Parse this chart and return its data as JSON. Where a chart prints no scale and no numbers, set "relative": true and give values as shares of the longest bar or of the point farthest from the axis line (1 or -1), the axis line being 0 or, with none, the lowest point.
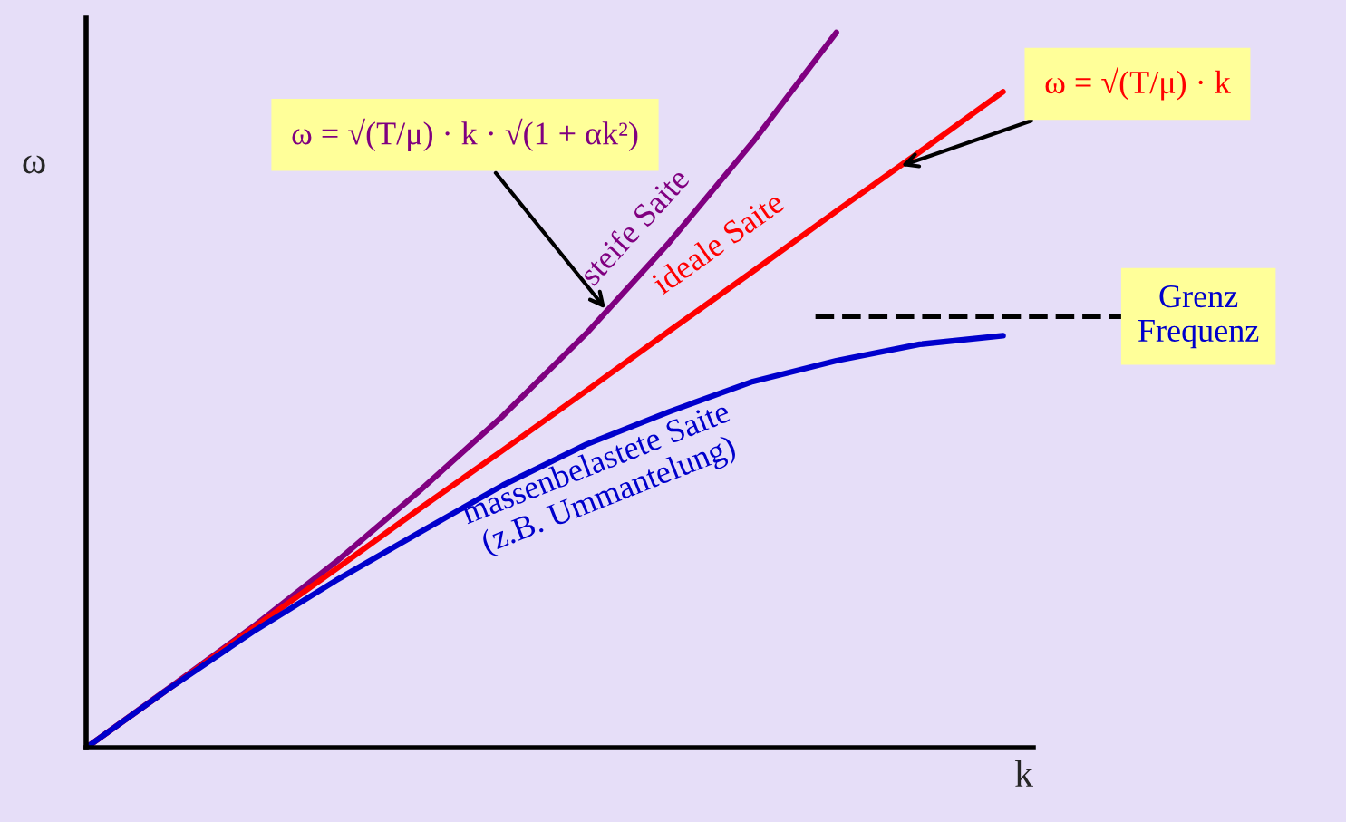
{
  "chart_data": {
    "type": "line",
    "relative": true,
    "xlabel": "k",
    "ylabel": "ω",
    "categories": [
      null,
      null,
      null,
      null,
      null,
      null,
      null,
      null,
      null,
      null,
      null,
      null
    ],
    "series": [
      {
        "name": "steife Saite",
        "color": "#800080",
        "values": [
          0,
          0.084,
          0.169,
          0.26,
          0.359,
          0.464,
          0.579,
          0.707,
          0.847,
          1,
          null,
          null
        ]
      },
      {
        "name": "ideale Saite",
        "color": "#ff0000",
        "values": [
          0,
          0.083,
          0.167,
          0.25,
          0.334,
          0.416,
          0.499,
          0.583,
          0.666,
          0.75,
          0.833,
          0.917
        ]
      },
      {
        "name": "massenbelastete Saite\n(z.B. Ummantelung)",
        "color": "#0000cc",
        "values": [
          0,
          0.083,
          0.162,
          0.234,
          0.301,
          0.367,
          0.424,
          0.47,
          0.512,
          0.541,
          0.564,
          0.576
        ]
      }
    ],
    "ref_lines": [
      {
        "axis": "y",
        "value": 0.603,
        "label": "Grenz\nFrequenz",
        "color": "#000000",
        "line_style": "dashed"
      }
    ],
    "annotations": [
      "ω = √(T/μ) · k · √(1 + αk²)",
      "ω = √(T/μ) · k"
    ],
    "grid": false,
    "legend": false,
    "line_style": "solid",
    "marker": "none",
    "tick_labels": false
  }
}
